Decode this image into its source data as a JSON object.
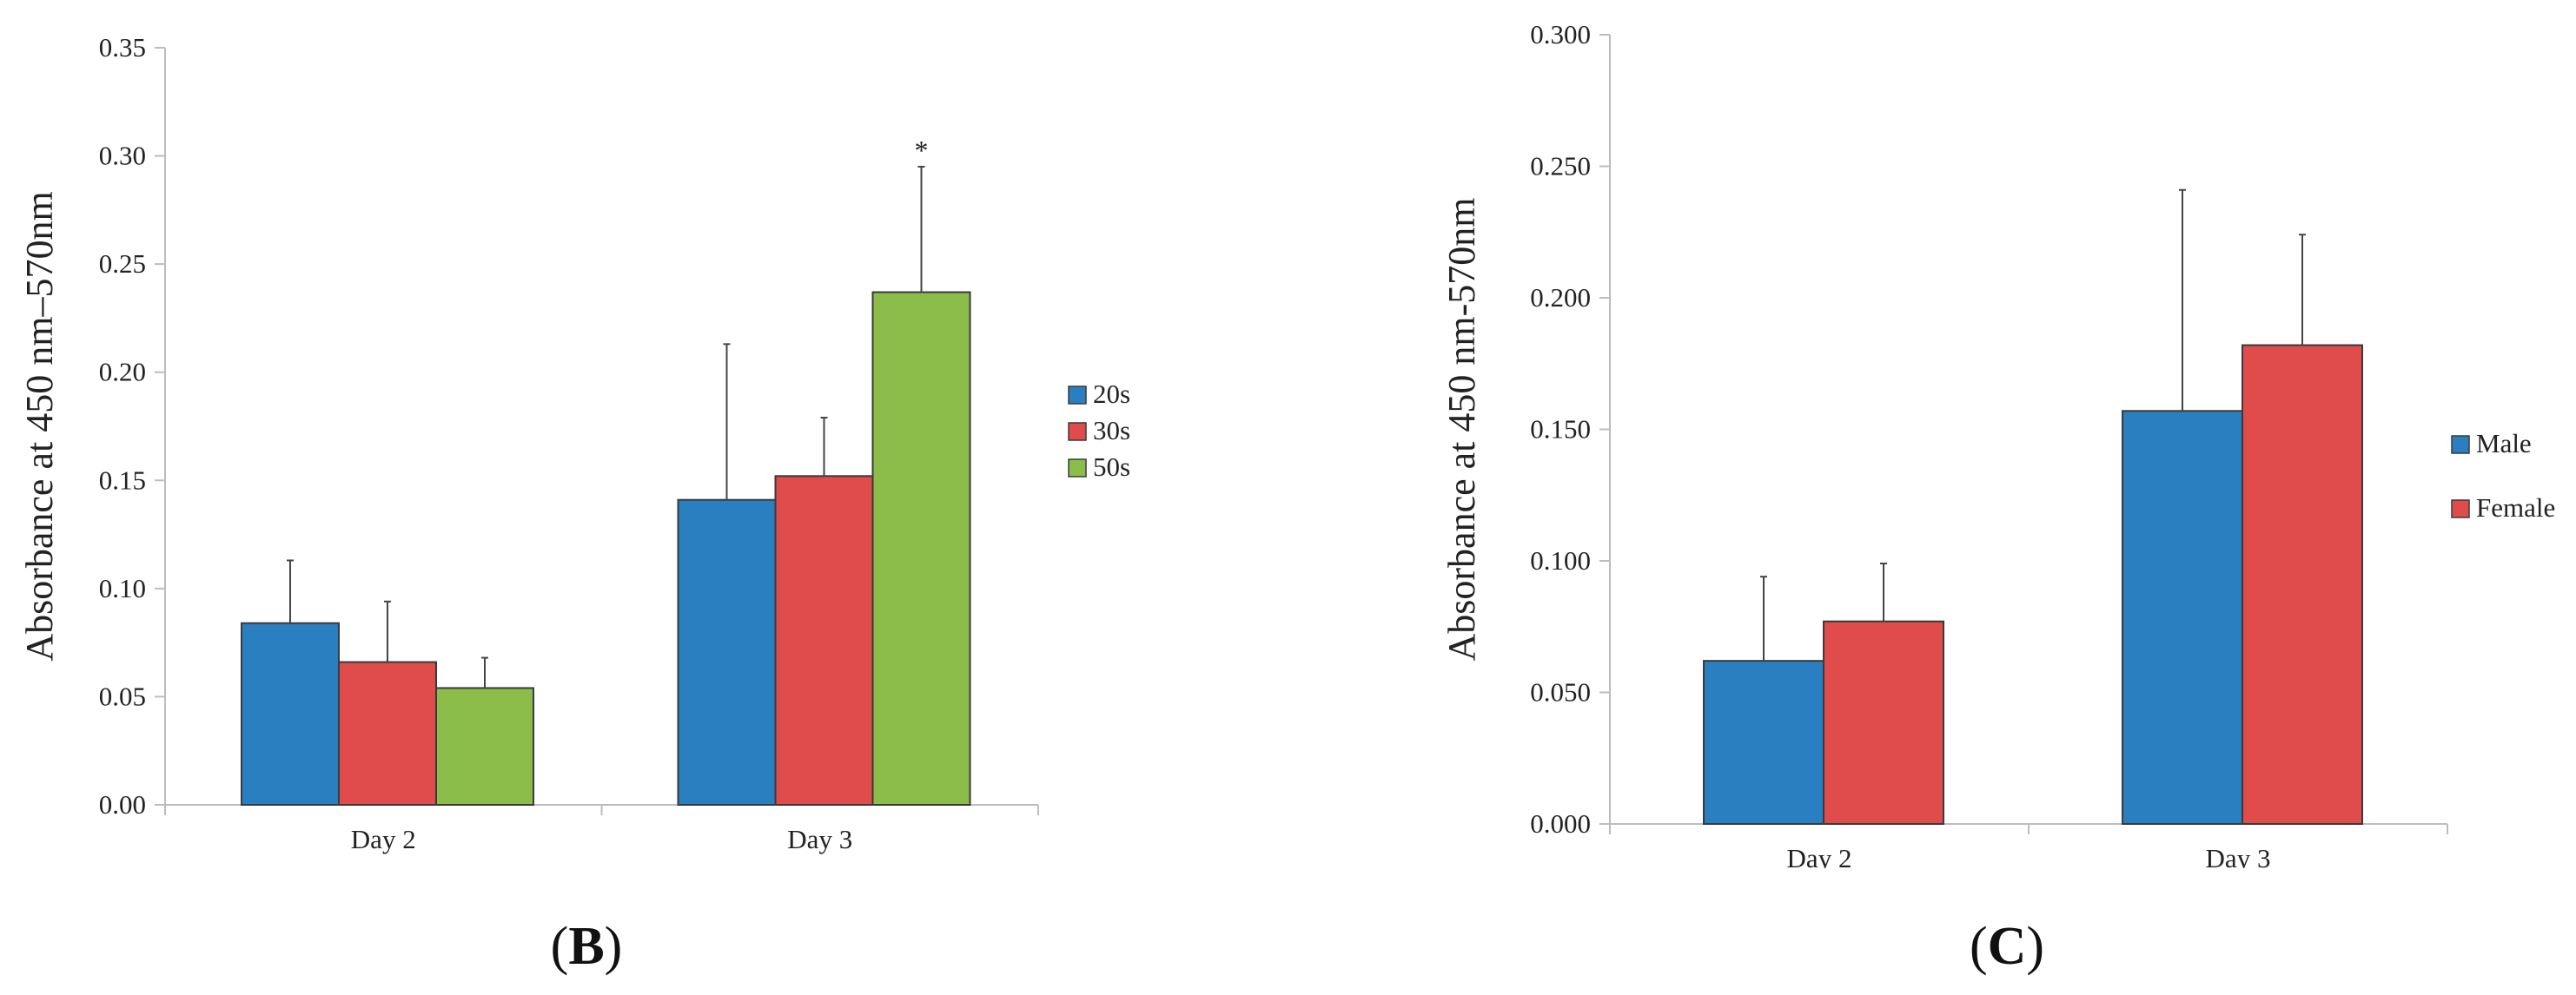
{
  "chart_data": [
    {
      "type": "bar",
      "panel": "B",
      "categories": [
        "Day 2",
        "Day 3"
      ],
      "series": [
        {
          "name": "20s",
          "values": [
            0.084,
            0.141
          ],
          "errors": [
            0.029,
            0.072
          ]
        },
        {
          "name": "30s",
          "values": [
            0.066,
            0.152
          ],
          "errors": [
            0.028,
            0.027
          ]
        },
        {
          "name": "50s",
          "values": [
            0.054,
            0.237
          ],
          "errors": [
            0.014,
            0.058
          ]
        }
      ],
      "annotations": [
        {
          "text": "*",
          "category": "Day 3",
          "series": "50s"
        }
      ],
      "ylabel": "Absorbance at 450 nm–570nm",
      "ylim": [
        0,
        0.35
      ],
      "yticks": [
        "0.00",
        "0.05",
        "0.10",
        "0.15",
        "0.20",
        "0.25",
        "0.30",
        "0.35"
      ],
      "grid": false,
      "legend": "right",
      "colors": [
        "#2a7fc0",
        "#e04b4b",
        "#8cbd4a"
      ]
    },
    {
      "type": "bar",
      "panel": "C",
      "categories": [
        "Day 2",
        "Day 3"
      ],
      "series": [
        {
          "name": "Male",
          "values": [
            0.062,
            0.157
          ],
          "errors": [
            0.032,
            0.084
          ]
        },
        {
          "name": "Female",
          "values": [
            0.077,
            0.182
          ],
          "errors": [
            0.022,
            0.042
          ]
        }
      ],
      "ylabel": "Absorbance at 450 nm-570nm",
      "ylim": [
        0,
        0.3
      ],
      "yticks": [
        "0.000",
        "0.050",
        "0.100",
        "0.150",
        "0.200",
        "0.250",
        "0.300"
      ],
      "grid": false,
      "legend": "right",
      "colors": [
        "#2a7fc0",
        "#e04b4b"
      ]
    }
  ],
  "labels": {
    "b": "B",
    "c": "C",
    "paren_open": "(",
    "paren_close": ")"
  }
}
